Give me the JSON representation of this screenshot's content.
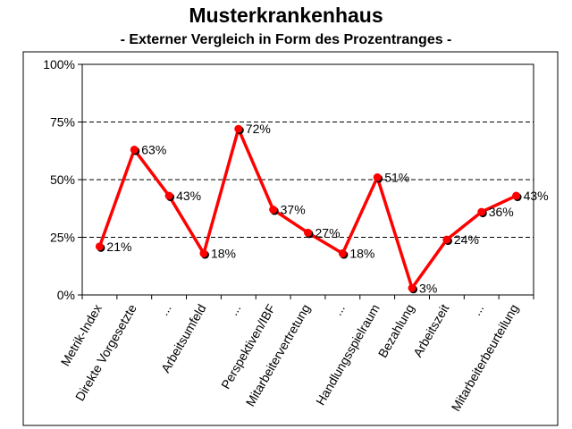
{
  "chart_data": {
    "type": "line",
    "title": "Musterkrankenhaus",
    "subtitle": "- Externer Vergleich in Form des Prozentranges -",
    "xlabel": "",
    "ylabel": "",
    "ylim": [
      0,
      100
    ],
    "yticks": [
      "0%",
      "25%",
      "50%",
      "75%",
      "100%"
    ],
    "grid": "dashed horizontal",
    "categories": [
      "Metrik-Index",
      "Direkte Vorgesetzte",
      "...",
      "Arbeitsumfeld",
      "...",
      "Perspektiven/IBF",
      "Mitarbeitervertretung",
      "...",
      "Handlungsspielraum",
      "Bezahlung",
      "Arbeitszeit",
      "...",
      "Mitarbeiterbeurteilung"
    ],
    "series": [
      {
        "color": "#ff0000",
        "marker_color": "#000000",
        "values": [
          21,
          63,
          43,
          18,
          72,
          37,
          27,
          18,
          51,
          3,
          24,
          36,
          43
        ],
        "labels": [
          "21%",
          "63%",
          "43%",
          "18%",
          "72%",
          "37%",
          "27%",
          "18%",
          "51%",
          "3%",
          "24%",
          "36%",
          "43%"
        ]
      }
    ]
  }
}
